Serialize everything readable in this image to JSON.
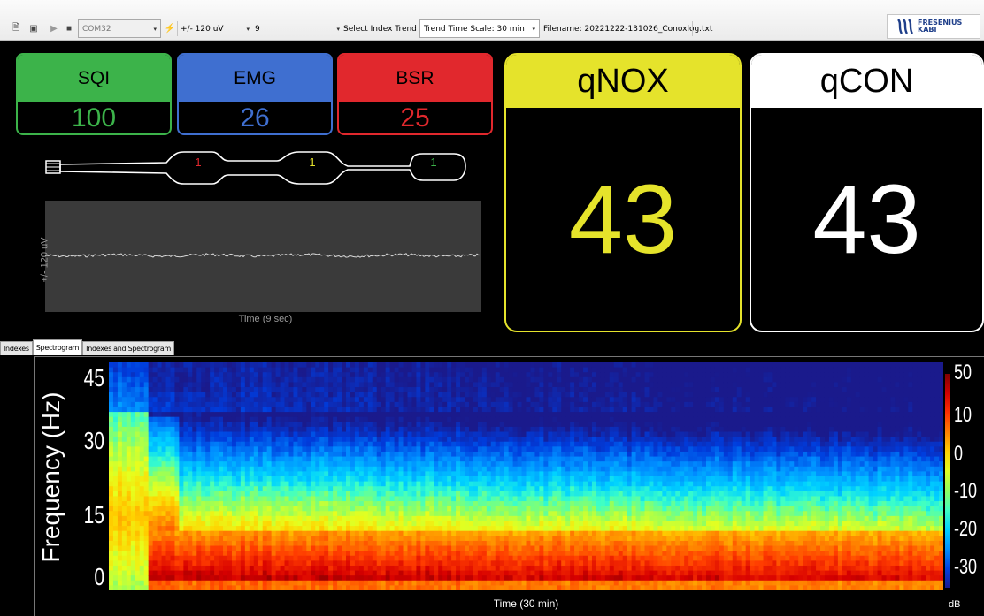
{
  "toolbar": {
    "port": "COM32",
    "range": "+/- 120 uV",
    "timebase": "9",
    "select_index_trend": "Select Index Trend",
    "trend_time_scale": "Trend Time Scale: 30 min",
    "filename": "Filename:  20221222-131026_Conoxlog.txt",
    "icons": [
      "save-icon",
      "record-icon",
      "play-icon",
      "stop-icon",
      "connect-icon"
    ]
  },
  "logo": {
    "text": "FRESENIUS\nKABI",
    "color": "#1f3f8a"
  },
  "indices": {
    "sqi": {
      "label": "SQI",
      "value": "100",
      "color": "#3cb34a"
    },
    "emg": {
      "label": "EMG",
      "value": "26",
      "color": "#3f6fd0"
    },
    "bsr": {
      "label": "BSR",
      "value": "25",
      "color": "#e1282d"
    },
    "qnox": {
      "label": "qNOX",
      "value": "43",
      "color": "#e5e32b"
    },
    "qcon": {
      "label": "qCON",
      "value": "43",
      "color": "#ffffff"
    }
  },
  "electrodes": [
    {
      "label": "1",
      "color": "#e1282d"
    },
    {
      "label": "1",
      "color": "#e5e32b"
    },
    {
      "label": "1",
      "color": "#3cb34a"
    }
  ],
  "eeg": {
    "ylabel": "+/- 120 uV",
    "xlabel": "Time (9 sec)"
  },
  "tabs": [
    {
      "label": "Indexes",
      "active": false
    },
    {
      "label": "Spectrogram",
      "active": true
    },
    {
      "label": "Indexes and Spectrogram",
      "active": false
    }
  ],
  "chart_data": {
    "type": "heatmap",
    "xlabel": "Time (30 min)",
    "ylabel": "Frequency (Hz)",
    "y_ticks": [
      "0",
      "15",
      "30",
      "45"
    ],
    "ylim": [
      0,
      45
    ],
    "xlim": [
      0,
      30
    ],
    "colorbar": {
      "label": "dB",
      "ticks": [
        "50",
        "10",
        "0",
        "-10",
        "-20",
        "-30"
      ],
      "range": [
        -30,
        50
      ]
    }
  }
}
